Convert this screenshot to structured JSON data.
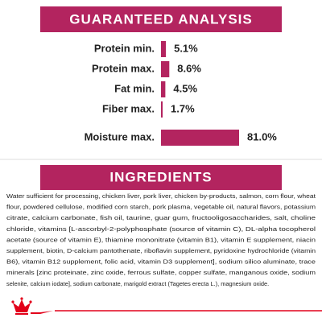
{
  "chart_data": {
    "type": "bar",
    "orientation": "horizontal",
    "title": "GUARANTEED ANALYSIS",
    "categories": [
      "Protein min.",
      "Protein max.",
      "Fat min.",
      "Fiber max.",
      "Moisture max."
    ],
    "values": [
      5.1,
      8.6,
      4.5,
      1.7,
      81.0
    ],
    "value_labels": [
      "5.1%",
      "8.6%",
      "4.5%",
      "1.7%",
      "81.0%"
    ],
    "color": "#b3245f"
  },
  "ingredients": {
    "title": "INGREDIENTS",
    "lines": [
      "Water sufficient for processing, chicken liver, pork liver, chicken by-products, salmon, corn flour, wheat",
      "flour, powdered cellulose, modified corn starch, pork plasma, vegetable oil, natural flavors, potassium",
      "citrate, calcium carbonate, fish oil, taurine, guar gum, fructooligosaccharides, salt, choline",
      "chloride, vitamins [L-ascorbyl-2-polyphosphate (source of vitamin C), DL-alpha tocopherol",
      "acetate (source of vitamin E), thiamine mononitrate (vitamin B1), vitamin E supplement, niacin",
      "supplement, biotin, D-calcium pantothenate, riboflavin supplement, pyridoxine hydrochloride (vitamin",
      "B6), vitamin B12 supplement, folic acid, vitamin D3 supplement], sodium silico aluminate, trace",
      "minerals [zinc proteinate, zinc oxide, ferrous sulfate, copper sulfate, manganous oxide, sodium",
      "selenite, calcium iodate], sodium carbonate, marigold extract (Tagetes erecta L.), magnesium oxide."
    ]
  }
}
